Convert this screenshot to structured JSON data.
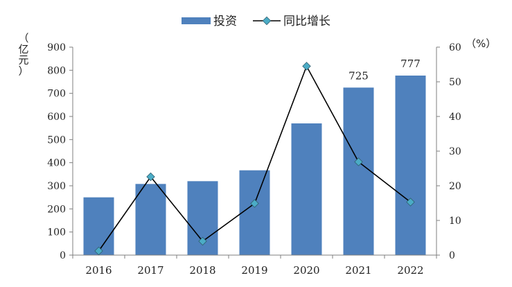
{
  "chart_data": {
    "type": "bar",
    "categories": [
      "2016",
      "2017",
      "2018",
      "2019",
      "2020",
      "2021",
      "2022"
    ],
    "series": [
      {
        "name": "投资",
        "type": "bar",
        "axis": "left",
        "color": "#4f81bd",
        "values": [
          250,
          308,
          320,
          367,
          570,
          725,
          777
        ]
      },
      {
        "name": "同比增长",
        "type": "line",
        "axis": "right",
        "color": "#000000",
        "marker_color": "#4bacc6",
        "values": [
          1.2,
          22.6,
          4.0,
          14.9,
          54.5,
          26.9,
          15.3
        ]
      }
    ],
    "data_labels": [
      {
        "category": "2021",
        "text": "725"
      },
      {
        "category": "2022",
        "text": "777"
      }
    ],
    "y_left": {
      "unit_label": "（亿元）",
      "ylim": [
        0,
        900
      ],
      "ticks": [
        "0",
        "100",
        "200",
        "300",
        "400",
        "500",
        "600",
        "700",
        "800",
        "900"
      ]
    },
    "y_right": {
      "unit_label": "（%）",
      "ylim": [
        0,
        60
      ],
      "ticks": [
        "0",
        "10",
        "20",
        "30",
        "40",
        "50",
        "60"
      ]
    },
    "grid": false,
    "legend_position": "top-center"
  }
}
